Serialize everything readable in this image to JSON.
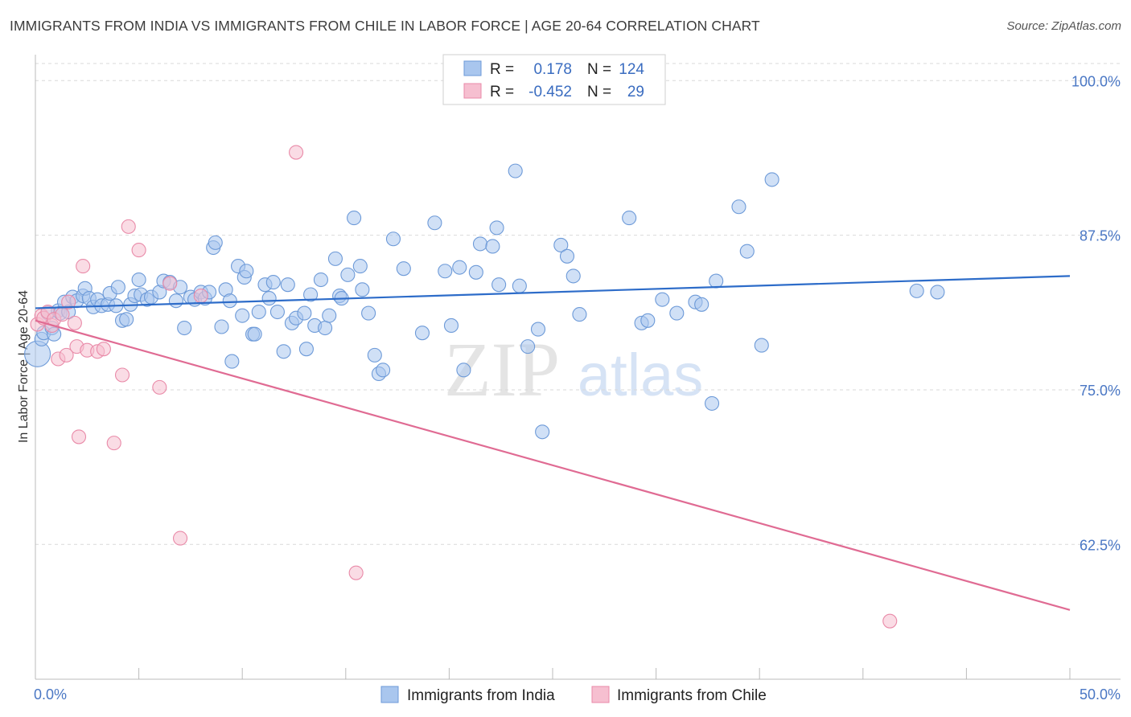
{
  "title": "IMMIGRANTS FROM INDIA VS IMMIGRANTS FROM CHILE IN LABOR FORCE | AGE 20-64 CORRELATION CHART",
  "source": "Source: ZipAtlas.com",
  "watermark": {
    "zip": "ZIP",
    "atlas": "atlas"
  },
  "colors": {
    "india_fill": "#a9c6ee",
    "india_stroke": "#6d9ad8",
    "india_line": "#2d6cc9",
    "chile_fill": "#f6bfd0",
    "chile_stroke": "#e98aa8",
    "chile_line": "#e06b93",
    "tick_text": "#4a77c4",
    "grid": "#d9d9d9"
  },
  "legend": {
    "rows": [
      {
        "r_label": "R =",
        "r_value": "0.178",
        "n_label": "N =",
        "n_value": "124"
      },
      {
        "r_label": "R =",
        "r_value": "-0.452",
        "n_label": "N =",
        "n_value": "29"
      }
    ]
  },
  "chart_data": {
    "type": "scatter",
    "title": "IMMIGRANTS FROM INDIA VS IMMIGRANTS FROM CHILE IN LABOR FORCE | AGE 20-64 CORRELATION CHART",
    "xlabel": "",
    "ylabel": "In Labor Force | Age 20-64",
    "xlim": [
      0,
      50
    ],
    "ylim": [
      51.6,
      102.1
    ],
    "x_tick_labels": [
      "0.0%",
      "50.0%"
    ],
    "x_tick_values": [
      0,
      50
    ],
    "y_tick_labels": [
      "62.5%",
      "75.0%",
      "87.5%",
      "100.0%"
    ],
    "y_tick_values": [
      62.5,
      75.0,
      87.5,
      100.0
    ],
    "legend_position": "top-center",
    "series": [
      {
        "name": "Immigrants from India",
        "r": 0.178,
        "n": 124,
        "trend": {
          "x": [
            0,
            50
          ],
          "y": [
            81.6,
            84.2
          ]
        },
        "points": [
          [
            0.1,
            77.9
          ],
          [
            0.3,
            79.1
          ],
          [
            0.4,
            79.6
          ],
          [
            0.6,
            81.2
          ],
          [
            0.8,
            80.0
          ],
          [
            0.9,
            79.5
          ],
          [
            1.1,
            81.4
          ],
          [
            1.2,
            81.2
          ],
          [
            1.4,
            82.1
          ],
          [
            1.6,
            81.3
          ],
          [
            1.8,
            82.5
          ],
          [
            2.0,
            82.2
          ],
          [
            2.3,
            82.6
          ],
          [
            2.4,
            83.2
          ],
          [
            2.6,
            82.4
          ],
          [
            2.8,
            81.7
          ],
          [
            3.0,
            82.3
          ],
          [
            3.2,
            81.8
          ],
          [
            3.5,
            81.9
          ],
          [
            3.6,
            82.8
          ],
          [
            3.9,
            81.8
          ],
          [
            4.0,
            83.3
          ],
          [
            4.2,
            80.6
          ],
          [
            4.4,
            80.7
          ],
          [
            4.6,
            81.9
          ],
          [
            4.8,
            82.6
          ],
          [
            5.0,
            83.9
          ],
          [
            5.1,
            82.7
          ],
          [
            5.4,
            82.3
          ],
          [
            5.6,
            82.5
          ],
          [
            6.0,
            82.9
          ],
          [
            6.2,
            83.8
          ],
          [
            6.5,
            83.7
          ],
          [
            6.8,
            82.2
          ],
          [
            7.0,
            83.3
          ],
          [
            7.2,
            80.0
          ],
          [
            7.5,
            82.5
          ],
          [
            7.7,
            82.3
          ],
          [
            8.0,
            82.9
          ],
          [
            8.2,
            82.4
          ],
          [
            8.4,
            82.9
          ],
          [
            8.6,
            86.5
          ],
          [
            8.7,
            86.9
          ],
          [
            9.0,
            80.1
          ],
          [
            9.2,
            83.1
          ],
          [
            9.4,
            82.2
          ],
          [
            9.5,
            77.3
          ],
          [
            9.8,
            85.0
          ],
          [
            10.0,
            81.0
          ],
          [
            10.1,
            84.1
          ],
          [
            10.2,
            84.6
          ],
          [
            10.5,
            79.5
          ],
          [
            10.6,
            79.5
          ],
          [
            10.8,
            81.3
          ],
          [
            11.1,
            83.5
          ],
          [
            11.3,
            82.4
          ],
          [
            11.5,
            83.7
          ],
          [
            11.7,
            81.3
          ],
          [
            12.0,
            78.1
          ],
          [
            12.2,
            83.5
          ],
          [
            12.4,
            80.4
          ],
          [
            12.6,
            80.8
          ],
          [
            13.0,
            81.2
          ],
          [
            13.1,
            78.3
          ],
          [
            13.3,
            82.7
          ],
          [
            13.5,
            80.2
          ],
          [
            13.8,
            83.9
          ],
          [
            14.0,
            80.0
          ],
          [
            14.2,
            81.0
          ],
          [
            14.5,
            85.6
          ],
          [
            14.7,
            82.6
          ],
          [
            14.8,
            82.4
          ],
          [
            15.1,
            84.3
          ],
          [
            15.4,
            88.9
          ],
          [
            15.7,
            85.0
          ],
          [
            15.8,
            83.1
          ],
          [
            16.1,
            81.2
          ],
          [
            16.4,
            77.8
          ],
          [
            16.6,
            76.3
          ],
          [
            16.8,
            76.6
          ],
          [
            17.3,
            87.2
          ],
          [
            17.8,
            84.8
          ],
          [
            18.7,
            79.6
          ],
          [
            19.3,
            88.5
          ],
          [
            19.8,
            84.6
          ],
          [
            20.1,
            80.2
          ],
          [
            20.5,
            84.9
          ],
          [
            20.7,
            76.6
          ],
          [
            21.3,
            84.5
          ],
          [
            21.5,
            86.8
          ],
          [
            22.1,
            86.6
          ],
          [
            22.3,
            88.1
          ],
          [
            22.4,
            83.5
          ],
          [
            23.2,
            92.7
          ],
          [
            23.4,
            83.4
          ],
          [
            23.8,
            78.5
          ],
          [
            24.3,
            79.9
          ],
          [
            24.5,
            71.6
          ],
          [
            25.4,
            86.7
          ],
          [
            25.7,
            85.8
          ],
          [
            26.0,
            84.2
          ],
          [
            26.3,
            81.1
          ],
          [
            28.7,
            88.9
          ],
          [
            29.3,
            80.4
          ],
          [
            29.6,
            80.6
          ],
          [
            30.3,
            82.3
          ],
          [
            31.0,
            81.2
          ],
          [
            31.9,
            82.1
          ],
          [
            32.2,
            81.9
          ],
          [
            32.7,
            73.9
          ],
          [
            32.9,
            83.8
          ],
          [
            34.0,
            89.8
          ],
          [
            34.4,
            86.2
          ],
          [
            35.1,
            78.6
          ],
          [
            35.6,
            92.0
          ],
          [
            42.6,
            83.0
          ],
          [
            43.6,
            82.9
          ]
        ]
      },
      {
        "name": "Immigrants from Chile",
        "r": -0.452,
        "n": 29,
        "trend": {
          "x": [
            0,
            50
          ],
          "y": [
            80.6,
            57.2
          ]
        },
        "points": [
          [
            0.1,
            80.3
          ],
          [
            0.3,
            81.0
          ],
          [
            0.4,
            80.8
          ],
          [
            0.6,
            81.3
          ],
          [
            0.8,
            80.2
          ],
          [
            0.9,
            80.7
          ],
          [
            1.1,
            77.5
          ],
          [
            1.3,
            81.1
          ],
          [
            1.5,
            77.8
          ],
          [
            1.6,
            82.1
          ],
          [
            1.9,
            80.4
          ],
          [
            2.0,
            78.5
          ],
          [
            2.1,
            71.2
          ],
          [
            2.3,
            85.0
          ],
          [
            2.5,
            78.2
          ],
          [
            3.0,
            78.1
          ],
          [
            3.3,
            78.3
          ],
          [
            3.8,
            70.7
          ],
          [
            4.2,
            76.2
          ],
          [
            4.5,
            88.2
          ],
          [
            5.0,
            86.3
          ],
          [
            6.0,
            75.2
          ],
          [
            6.5,
            83.6
          ],
          [
            7.0,
            63.0
          ],
          [
            8.0,
            82.6
          ],
          [
            12.6,
            94.2
          ],
          [
            15.5,
            60.2
          ],
          [
            41.3,
            56.3
          ]
        ]
      }
    ]
  },
  "y_axis_label": "In Labor Force | Age 20-64",
  "bottom_legend": [
    "Immigrants from India",
    "Immigrants from Chile"
  ]
}
